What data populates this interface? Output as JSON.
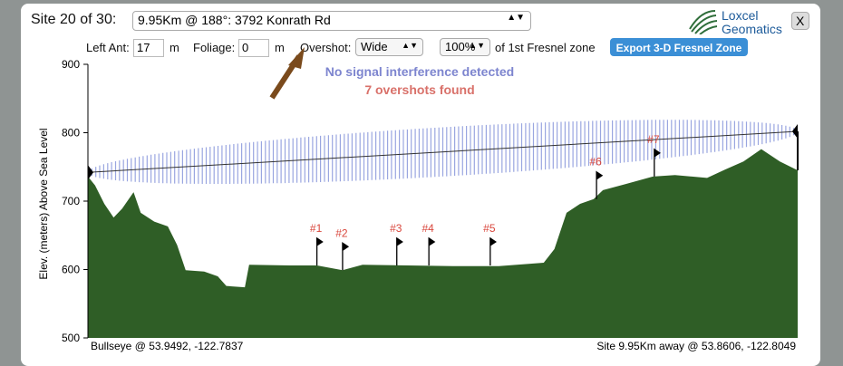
{
  "header": {
    "site_label": "Site 20 of 30:",
    "site_select": "9.95Km @ 188°:  3792 Konrath Rd",
    "logo_line1": "Loxcel",
    "logo_line2": "Geomatics",
    "close": "X"
  },
  "controls": {
    "left_ant_label": "Left Ant:",
    "left_ant_value": 17,
    "left_ant_unit": "m",
    "foliage_label": "Foliage:",
    "foliage_value": 0,
    "foliage_unit": "m",
    "overshot_label": "Overshot:",
    "overshot_value": "Wide",
    "fresnel_pct": "100%",
    "fresnel_label": "of 1st Fresnel zone",
    "export_button": "Export 3-D Fresnel Zone"
  },
  "chart_data": {
    "type": "area",
    "y_label": "Elev. (meters) Above Sea Level",
    "message1": "No signal interference detected",
    "message2": "7 overshots found",
    "ylim": [
      500,
      900
    ],
    "yticks": [
      500,
      600,
      700,
      800,
      900
    ],
    "xlim": [
      0,
      9.95
    ],
    "color": "#2f5e26",
    "x": [
      0,
      0.1,
      0.23,
      0.36,
      0.48,
      0.64,
      0.74,
      0.93,
      1.12,
      1.25,
      1.37,
      1.63,
      1.82,
      1.94,
      2.2,
      2.26,
      2.83,
      3.21,
      3.57,
      3.85,
      4.49,
      5.12,
      5.76,
      6.39,
      6.54,
      6.71,
      6.9,
      7.09,
      7.22,
      7.54,
      7.92,
      8.23,
      8.68,
      8.93,
      9.19,
      9.44,
      9.7,
      9.95
    ],
    "values": [
      736,
      723,
      696,
      676,
      689,
      713,
      683,
      670,
      663,
      636,
      599,
      597,
      590,
      576,
      574,
      607,
      606,
      606,
      599,
      607,
      606,
      605,
      605,
      610,
      630,
      683,
      696,
      703,
      716,
      725,
      736,
      738,
      734,
      746,
      758,
      776,
      758,
      745
    ],
    "line_of_sight": [
      742,
      802
    ],
    "fresnel_max_radius": 36,
    "overshots": [
      {
        "label": "#1",
        "x": 3.21,
        "elevation": 606
      },
      {
        "label": "#2",
        "x": 3.57,
        "elevation": 599
      },
      {
        "label": "#3",
        "x": 4.33,
        "elevation": 606
      },
      {
        "label": "#4",
        "x": 4.78,
        "elevation": 606
      },
      {
        "label": "#5",
        "x": 5.64,
        "elevation": 606
      },
      {
        "label": "#6",
        "x": 7.13,
        "elevation": 703
      },
      {
        "label": "#7",
        "x": 7.94,
        "elevation": 736
      }
    ],
    "left_footer": "Bullseye @ 53.9492, -122.7837",
    "right_footer": "Site 9.95Km away @ 53.8606, -122.8049"
  }
}
